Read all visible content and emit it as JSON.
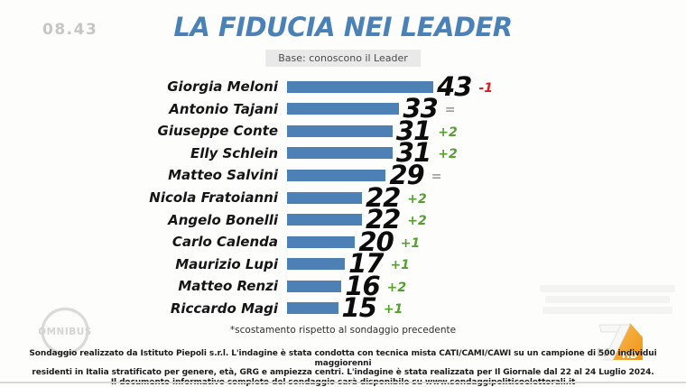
{
  "clock": "08.43",
  "header": {
    "title": "LA FIDUCIA NEI LEADER",
    "subtitle": "Base: conoscono il Leader"
  },
  "chart_data": {
    "type": "bar",
    "orientation": "horizontal",
    "title": "LA FIDUCIA NEI LEADER",
    "subtitle": "Base: conoscono il Leader",
    "xlim": [
      0,
      50
    ],
    "categories": [
      "Giorgia Meloni",
      "Antonio Tajani",
      "Giuseppe Conte",
      "Elly Schlein",
      "Matteo Salvini",
      "Nicola Fratoianni",
      "Angelo Bonelli",
      "Carlo Calenda",
      "Maurizio Lupi",
      "Matteo Renzi",
      "Riccardo Magi"
    ],
    "values": [
      43,
      33,
      31,
      31,
      29,
      22,
      22,
      20,
      17,
      16,
      15
    ],
    "changes": [
      "-1",
      "=",
      "+2",
      "+2",
      "=",
      "+2",
      "+2",
      "+1",
      "+1",
      "+2",
      "+1"
    ],
    "footnote": "*scostamento rispetto al sondaggio precedente",
    "bar_color": "#4d81b5",
    "change_colors": {
      "positive": "#55a02f",
      "negative": "#e1181e",
      "neutral": "#9c9c9c"
    }
  },
  "footer": {
    "disclaimer_lines": [
      "Sondaggio realizzato da Istituto Piepoli s.r.l. L'indagine è stata condotta con tecnica mista CATI/CAMI/CAWI su un campione di 500 individui maggiorenni",
      "residenti in Italia stratificato per genere, età, GRG e ampiezza centri. L'indagine è stata realizzata per Il Giornale dal 22 al 24 Luglio 2024.",
      "Il documento informativo completo del sondaggio sarà disponibile su www.sondaggipoliticoelettorali.it"
    ]
  },
  "watermarks": {
    "omnibus": "OMNIBUS",
    "channel_la": "LA",
    "channel_hd": "HD"
  }
}
